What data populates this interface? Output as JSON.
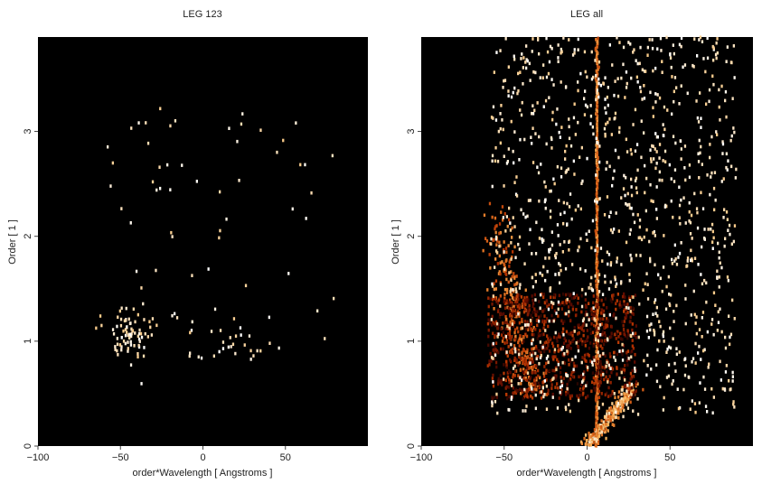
{
  "chart_data": [
    {
      "type": "heatmap",
      "title": "LEG 123",
      "xlabel": "order*Wavelength [ Angstroms ]",
      "ylabel": "Order [ 1 ]",
      "xlim": [
        -100,
        100
      ],
      "ylim": [
        0,
        3.9
      ],
      "x_ticks": [
        -100,
        -50,
        0,
        50
      ],
      "y_ticks": [
        0,
        1,
        2,
        3
      ],
      "background": "#000000",
      "colormap": [
        "#000000",
        "#5a0a00",
        "#b03000",
        "#e07020",
        "#f6b860",
        "#ffffff"
      ],
      "features": [
        {
          "kind": "cluster",
          "x": -45,
          "y": 1.05,
          "sx": 6,
          "sy": 0.13,
          "count": 75,
          "level": 1.0
        },
        {
          "kind": "band",
          "x": [
            -20,
            35
          ],
          "y": [
            0.8,
            1.15
          ],
          "count": 22,
          "level": 1.0
        },
        {
          "kind": "scatter",
          "x": [
            -58,
            80
          ],
          "y": [
            0.85,
            3.25
          ],
          "count": 70,
          "level": 1.0
        }
      ]
    },
    {
      "type": "heatmap",
      "title": "LEG all",
      "xlabel": "order*Wavelength [ Angstroms ]",
      "ylabel": "Order [ 1 ]",
      "xlim": [
        -100,
        100
      ],
      "ylim": [
        0,
        3.9
      ],
      "x_ticks": [
        -100,
        -50,
        0,
        50
      ],
      "y_ticks": [
        0,
        1,
        2,
        3
      ],
      "background": "#000000",
      "colormap": [
        "#000000",
        "#5a0a00",
        "#b03000",
        "#e07020",
        "#f6b860",
        "#ffffff"
      ],
      "features": [
        {
          "kind": "vertical_line",
          "x": 6,
          "y": [
            0,
            3.9
          ],
          "level": 0.75
        },
        {
          "kind": "diagonal_arc",
          "from": [
            0,
            0
          ],
          "to": [
            28,
            0.55
          ],
          "level": 0.95
        },
        {
          "kind": "left_arc",
          "from": [
            -55,
            2.3
          ],
          "to": [
            -32,
            0.5
          ],
          "level": 0.7
        },
        {
          "kind": "dense_block",
          "x": [
            -60,
            30
          ],
          "y": [
            0.45,
            1.45
          ],
          "level": 0.45
        },
        {
          "kind": "scatter",
          "x": [
            -58,
            90
          ],
          "y": [
            0.3,
            3.9
          ],
          "count": 1100,
          "level": 1.0
        }
      ]
    }
  ]
}
